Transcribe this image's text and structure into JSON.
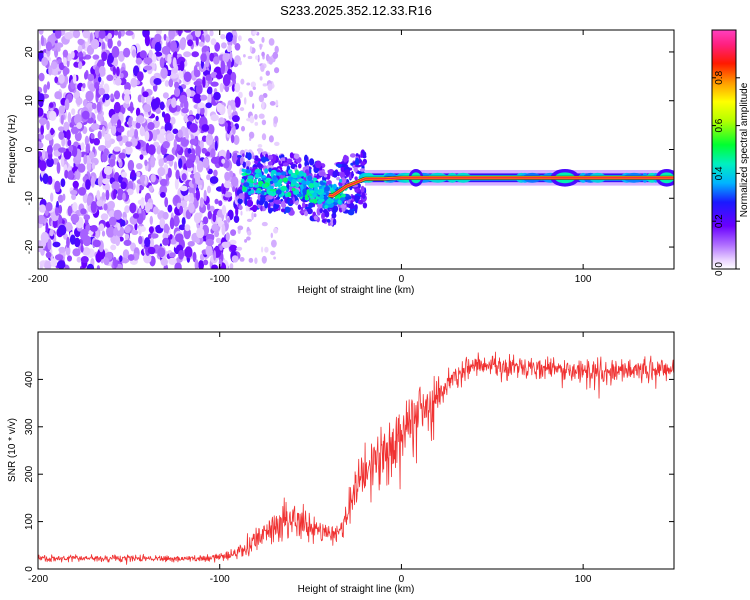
{
  "title": "S233.2025.352.12.33.R16",
  "chart_data": [
    {
      "type": "heatmap",
      "xlabel": "Height of straight line (km)",
      "ylabel": "Frequency (Hz)",
      "xlim": [
        -200,
        150
      ],
      "ylim": [
        -24.5,
        24.5
      ],
      "x_ticks": [
        -200,
        -100,
        0,
        100
      ],
      "y_ticks": [
        -20,
        -10,
        0,
        10,
        20
      ],
      "grid": false,
      "colorbar": {
        "label": "Normalized spectral amplitude",
        "range": [
          0,
          1
        ],
        "ticks": [
          "0.0",
          "0.2",
          "0.4",
          "0.6",
          "0.8"
        ],
        "colormap": "rainbow (white-magenta-purple-blue-cyan-green-yellow-orange-red-pink)"
      },
      "features": {
        "noise_region_x": [
          -200,
          -90
        ],
        "noise_band_freq_range": [
          -24.5,
          24.5
        ],
        "transition_region_x": [
          -90,
          -30
        ],
        "signal_line_freq_hz": -5.8,
        "signal_track": [
          {
            "x": -85,
            "y": -6.5
          },
          {
            "x": -70,
            "y": -6.8
          },
          {
            "x": -55,
            "y": -7.2
          },
          {
            "x": -45,
            "y": -9.0
          },
          {
            "x": -38,
            "y": -9.5
          },
          {
            "x": -30,
            "y": -7.5
          },
          {
            "x": -20,
            "y": -6.0
          },
          {
            "x": -10,
            "y": -6.0
          },
          {
            "x": 0,
            "y": -5.8
          },
          {
            "x": 150,
            "y": -5.8
          }
        ]
      }
    },
    {
      "type": "line",
      "xlabel": "Height of straight line (km)",
      "ylabel": "SNR (10 * v/v)",
      "xlim": [
        -200,
        150
      ],
      "ylim": [
        0,
        500
      ],
      "x_ticks": [
        -200,
        -100,
        0,
        100
      ],
      "y_ticks": [
        0,
        100,
        200,
        300,
        400
      ],
      "grid": false,
      "line_color": "#f03232",
      "trend": [
        {
          "x": -200,
          "y": 22
        },
        {
          "x": -150,
          "y": 22
        },
        {
          "x": -110,
          "y": 22
        },
        {
          "x": -95,
          "y": 28
        },
        {
          "x": -85,
          "y": 45
        },
        {
          "x": -75,
          "y": 75
        },
        {
          "x": -65,
          "y": 100
        },
        {
          "x": -55,
          "y": 100
        },
        {
          "x": -45,
          "y": 85
        },
        {
          "x": -38,
          "y": 70
        },
        {
          "x": -32,
          "y": 95
        },
        {
          "x": -25,
          "y": 170
        },
        {
          "x": -18,
          "y": 210
        },
        {
          "x": -10,
          "y": 240
        },
        {
          "x": -5,
          "y": 270
        },
        {
          "x": 0,
          "y": 290
        },
        {
          "x": 5,
          "y": 310
        },
        {
          "x": 15,
          "y": 340
        },
        {
          "x": 25,
          "y": 390
        },
        {
          "x": 35,
          "y": 420
        },
        {
          "x": 50,
          "y": 430
        },
        {
          "x": 75,
          "y": 425
        },
        {
          "x": 100,
          "y": 415
        },
        {
          "x": 125,
          "y": 420
        },
        {
          "x": 150,
          "y": 420
        }
      ],
      "noise_amplitude": [
        {
          "x": -200,
          "a": 10
        },
        {
          "x": -110,
          "a": 10
        },
        {
          "x": -90,
          "a": 18
        },
        {
          "x": -80,
          "a": 40
        },
        {
          "x": -55,
          "a": 55
        },
        {
          "x": -42,
          "a": 30
        },
        {
          "x": -32,
          "a": 40
        },
        {
          "x": -20,
          "a": 90
        },
        {
          "x": 0,
          "a": 100
        },
        {
          "x": 15,
          "a": 70
        },
        {
          "x": 25,
          "a": 45
        },
        {
          "x": 60,
          "a": 35
        },
        {
          "x": 150,
          "a": 35
        }
      ]
    }
  ]
}
